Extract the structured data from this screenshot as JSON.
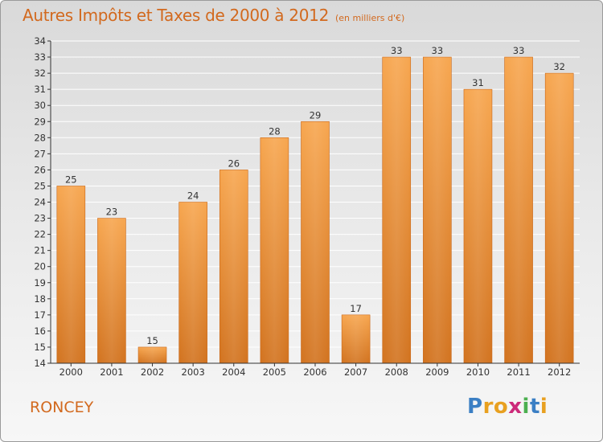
{
  "header": {
    "title": "Autres Impôts et Taxes de 2000 à 2012",
    "unit": "(en milliers d'€)"
  },
  "footer": {
    "commune": "RONCEY",
    "brand_letters": [
      "P",
      "r",
      "o",
      "x",
      "i",
      "t",
      "i"
    ],
    "brand_colors": [
      "#3b7fc4",
      "#e8a020",
      "#e8a020",
      "#cc2a7a",
      "#4caf50",
      "#3b7fc4",
      "#e8a020"
    ]
  },
  "colors": {
    "title": "#d2691e",
    "bar_top": "#f7a64f",
    "bar_bottom": "#d2731f",
    "grid": "#ffffff",
    "axis": "#333333"
  },
  "chart_data": {
    "type": "bar",
    "categories": [
      "2000",
      "2001",
      "2002",
      "2003",
      "2004",
      "2005",
      "2006",
      "2007",
      "2008",
      "2009",
      "2010",
      "2011",
      "2012"
    ],
    "values": [
      25,
      23,
      15,
      24,
      26,
      28,
      29,
      17,
      33,
      33,
      31,
      33,
      32
    ],
    "title": "Autres Impôts et Taxes de 2000 à 2012",
    "ylabel": "",
    "xlabel": "",
    "ylim": [
      14,
      34
    ],
    "yticks": [
      14,
      15,
      16,
      17,
      18,
      19,
      20,
      21,
      22,
      23,
      24,
      25,
      26,
      27,
      28,
      29,
      30,
      31,
      32,
      33,
      34
    ],
    "grid": true,
    "data_labels": true
  }
}
